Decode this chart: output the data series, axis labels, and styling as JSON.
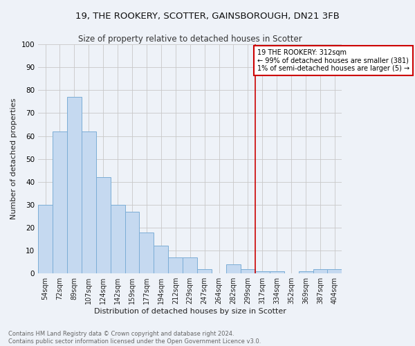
{
  "title": "19, THE ROOKERY, SCOTTER, GAINSBOROUGH, DN21 3FB",
  "subtitle": "Size of property relative to detached houses in Scotter",
  "xlabel": "Distribution of detached houses by size in Scotter",
  "ylabel": "Number of detached properties",
  "bar_labels": [
    "54sqm",
    "72sqm",
    "89sqm",
    "107sqm",
    "124sqm",
    "142sqm",
    "159sqm",
    "177sqm",
    "194sqm",
    "212sqm",
    "229sqm",
    "247sqm",
    "264sqm",
    "282sqm",
    "299sqm",
    "317sqm",
    "334sqm",
    "352sqm",
    "369sqm",
    "387sqm",
    "404sqm"
  ],
  "bar_values": [
    30,
    62,
    77,
    62,
    42,
    30,
    27,
    18,
    12,
    7,
    7,
    2,
    0,
    4,
    2,
    1,
    1,
    0,
    1,
    2,
    2
  ],
  "bar_color": "#c5d9f0",
  "bar_edge_color": "#7badd6",
  "annotation_text": "19 THE ROOKERY: 312sqm\n← 99% of detached houses are smaller (381)\n1% of semi-detached houses are larger (5) →",
  "annotation_box_color": "#ffffff",
  "annotation_border_color": "#cc0000",
  "vline_color": "#cc0000",
  "grid_color": "#c8c8c8",
  "background_color": "#eef2f8",
  "footer_text": "Contains HM Land Registry data © Crown copyright and database right 2024.\nContains public sector information licensed under the Open Government Licence v3.0.",
  "ylim": [
    0,
    100
  ],
  "property_line_bin_index": 15,
  "title_fontsize": 9.5,
  "subtitle_fontsize": 8.5
}
